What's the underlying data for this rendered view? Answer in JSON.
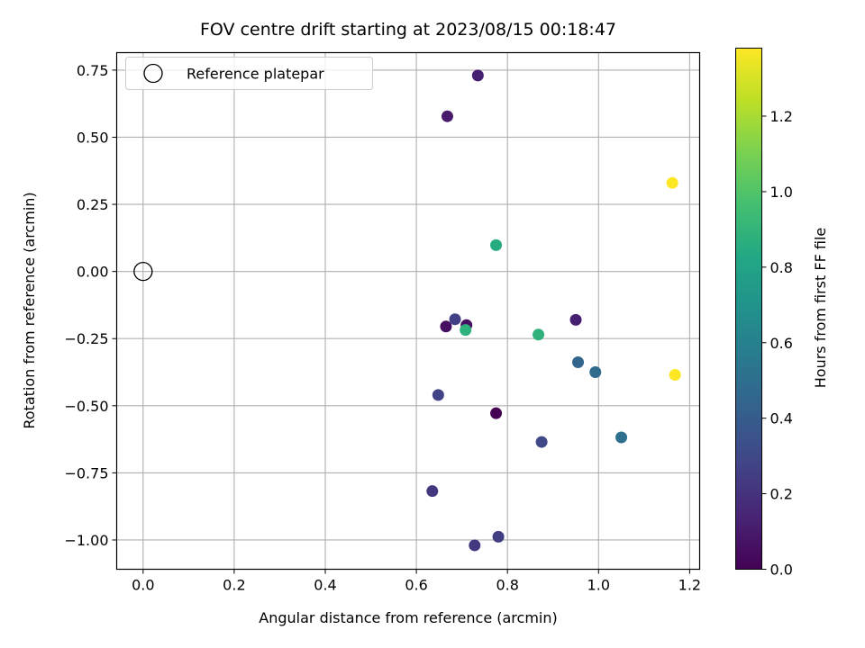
{
  "chart_data": {
    "type": "scatter",
    "title": "FOV centre drift starting at 2023/08/15 00:18:47",
    "xlabel": "Angular distance from reference (arcmin)",
    "ylabel": "Rotation from reference (arcmin)",
    "xlim": [
      -0.058,
      1.222
    ],
    "ylim": [
      -1.109,
      0.815
    ],
    "grid": true,
    "legend": {
      "placement": "top-left",
      "entries": [
        {
          "label": "Reference platepar",
          "marker": "open-circle"
        }
      ]
    },
    "reference_point": {
      "x": 0.0,
      "y": 0.0,
      "label": "Reference platepar"
    },
    "x_ticks": [
      {
        "value": 0.0,
        "label": "0.0"
      },
      {
        "value": 0.2,
        "label": "0.2"
      },
      {
        "value": 0.4,
        "label": "0.4"
      },
      {
        "value": 0.6,
        "label": "0.6"
      },
      {
        "value": 0.8,
        "label": "0.8"
      },
      {
        "value": 1.0,
        "label": "1.0"
      },
      {
        "value": 1.2,
        "label": "1.2"
      }
    ],
    "y_ticks": [
      {
        "value": 0.75,
        "label": "0.75"
      },
      {
        "value": 0.5,
        "label": "0.50"
      },
      {
        "value": 0.25,
        "label": "0.25"
      },
      {
        "value": 0.0,
        "label": "0.00"
      },
      {
        "value": -0.25,
        "label": "−0.25"
      },
      {
        "value": -0.5,
        "label": "−0.50"
      },
      {
        "value": -0.75,
        "label": "−0.75"
      },
      {
        "value": -1.0,
        "label": "−1.00"
      }
    ],
    "colorbar": {
      "label": "Hours from first FF file",
      "colormap": "viridis",
      "range": [
        0.0,
        1.38
      ],
      "ticks": [
        {
          "value": 0.0,
          "label": "0.0"
        },
        {
          "value": 0.2,
          "label": "0.2"
        },
        {
          "value": 0.4,
          "label": "0.4"
        },
        {
          "value": 0.6,
          "label": "0.6"
        },
        {
          "value": 0.8,
          "label": "0.8"
        },
        {
          "value": 1.0,
          "label": "1.0"
        },
        {
          "value": 1.2,
          "label": "1.2"
        }
      ]
    },
    "points": [
      {
        "x": 0.775,
        "y": -0.528,
        "hours": 0.0
      },
      {
        "x": 0.665,
        "y": -0.205,
        "hours": 0.05
      },
      {
        "x": 0.71,
        "y": -0.2,
        "hours": 0.06
      },
      {
        "x": 0.668,
        "y": 0.578,
        "hours": 0.1
      },
      {
        "x": 0.735,
        "y": 0.73,
        "hours": 0.12
      },
      {
        "x": 0.95,
        "y": -0.18,
        "hours": 0.12
      },
      {
        "x": 0.635,
        "y": -0.818,
        "hours": 0.22
      },
      {
        "x": 0.728,
        "y": -1.02,
        "hours": 0.23
      },
      {
        "x": 0.78,
        "y": -0.988,
        "hours": 0.25
      },
      {
        "x": 0.685,
        "y": -0.178,
        "hours": 0.26
      },
      {
        "x": 0.648,
        "y": -0.46,
        "hours": 0.27
      },
      {
        "x": 0.875,
        "y": -0.635,
        "hours": 0.3
      },
      {
        "x": 0.955,
        "y": -0.338,
        "hours": 0.45
      },
      {
        "x": 0.993,
        "y": -0.375,
        "hours": 0.48
      },
      {
        "x": 1.05,
        "y": -0.618,
        "hours": 0.5
      },
      {
        "x": 0.775,
        "y": 0.098,
        "hours": 0.85
      },
      {
        "x": 0.708,
        "y": -0.218,
        "hours": 0.88
      },
      {
        "x": 0.868,
        "y": -0.235,
        "hours": 0.88
      },
      {
        "x": 1.162,
        "y": 0.33,
        "hours": 1.38
      },
      {
        "x": 1.168,
        "y": -0.385,
        "hours": 1.38
      }
    ]
  }
}
